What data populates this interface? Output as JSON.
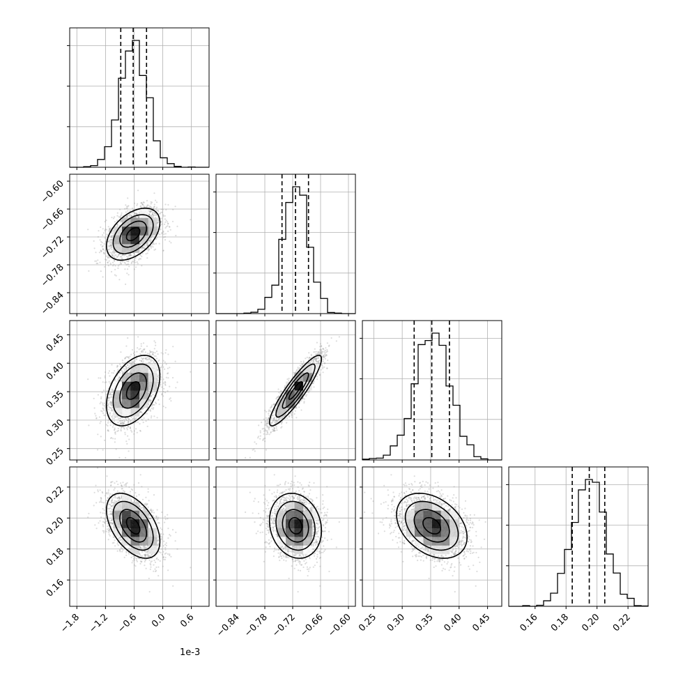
{
  "chart_data": {
    "type": "corner",
    "offset_label": "1e-3",
    "params": [
      {
        "mean": -0.62,
        "sd": 0.28,
        "range": [
          -1.95,
          0.97
        ],
        "ticks": [
          -1.8,
          -1.2,
          -0.6,
          0.0,
          0.6
        ],
        "tick_labels": [
          "−1.8",
          "−1.2",
          "−0.6",
          "0.0",
          "0.6"
        ],
        "quantiles": [
          -0.88,
          -0.62,
          -0.34
        ]
      },
      {
        "mean": -0.714,
        "sd": 0.028,
        "range": [
          -0.885,
          -0.585
        ],
        "ticks": [
          -0.84,
          -0.78,
          -0.72,
          -0.66,
          -0.6
        ],
        "tick_labels": [
          "−0.84",
          "−0.78",
          "−0.72",
          "−0.66",
          "−0.60"
        ],
        "quantiles": [
          -0.743,
          -0.714,
          -0.686
        ]
      },
      {
        "mean": 0.352,
        "sd": 0.031,
        "range": [
          0.23,
          0.475
        ],
        "ticks": [
          0.25,
          0.3,
          0.35,
          0.4,
          0.45
        ],
        "tick_labels": [
          "0.25",
          "0.30",
          "0.35",
          "0.40",
          "0.45"
        ],
        "quantiles": [
          0.321,
          0.352,
          0.383
        ]
      },
      {
        "mean": 0.195,
        "sd": 0.0105,
        "range": [
          0.143,
          0.233
        ],
        "ticks": [
          0.16,
          0.18,
          0.2,
          0.22
        ],
        "tick_labels": [
          "0.16",
          "0.18",
          "0.20",
          "0.22"
        ],
        "quantiles": [
          0.184,
          0.195,
          0.205
        ]
      }
    ],
    "correlations": [
      [
        1.0,
        0.45,
        0.42,
        -0.48
      ],
      [
        0.45,
        1.0,
        0.9,
        -0.15
      ],
      [
        0.42,
        0.9,
        1.0,
        -0.35
      ],
      [
        -0.48,
        -0.15,
        -0.35,
        1.0
      ]
    ],
    "contour_levels": [
      0.5,
      1.0,
      1.5,
      2.0
    ],
    "histogram_bins": 20,
    "grid": true
  }
}
